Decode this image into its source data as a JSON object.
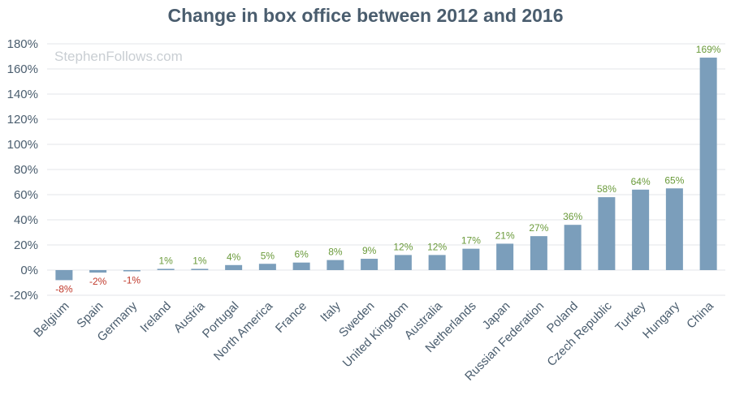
{
  "chart_data": {
    "type": "bar",
    "title": "Change in box office between 2012 and 2016",
    "watermark": "StephenFollows.com",
    "xlabel": "",
    "ylabel": "",
    "ylim": [
      -20,
      180
    ],
    "ytick_values": [
      -20,
      0,
      20,
      40,
      60,
      80,
      100,
      120,
      140,
      160,
      180
    ],
    "ytick_labels": [
      "-20%",
      "0%",
      "20%",
      "40%",
      "60%",
      "80%",
      "100%",
      "120%",
      "140%",
      "160%",
      "180%"
    ],
    "grid": true,
    "categories": [
      "Belgium",
      "Spain",
      "Germany",
      "Ireland",
      "Austria",
      "Portugal",
      "North America",
      "France",
      "Italy",
      "Sweden",
      "United Kingdom",
      "Australia",
      "Netherlands",
      "Japan",
      "Russian Federation",
      "Poland",
      "Czech Republic",
      "Turkey",
      "Hungary",
      "China"
    ],
    "values": [
      -8,
      -2,
      -1,
      1,
      1,
      4,
      5,
      6,
      8,
      9,
      12,
      12,
      17,
      21,
      27,
      36,
      58,
      64,
      65,
      169
    ],
    "data_labels": [
      "-8%",
      "-2%",
      "-1%",
      "1%",
      "1%",
      "4%",
      "5%",
      "6%",
      "8%",
      "9%",
      "12%",
      "12%",
      "17%",
      "21%",
      "27%",
      "36%",
      "58%",
      "64%",
      "65%",
      "169%"
    ],
    "colors": {
      "bar": "#7b9ebb",
      "positive_label": "#6a9a3a",
      "negative_label": "#c0392b",
      "grid": "#e3e6ea",
      "axis_text": "#4a5d6e"
    }
  }
}
